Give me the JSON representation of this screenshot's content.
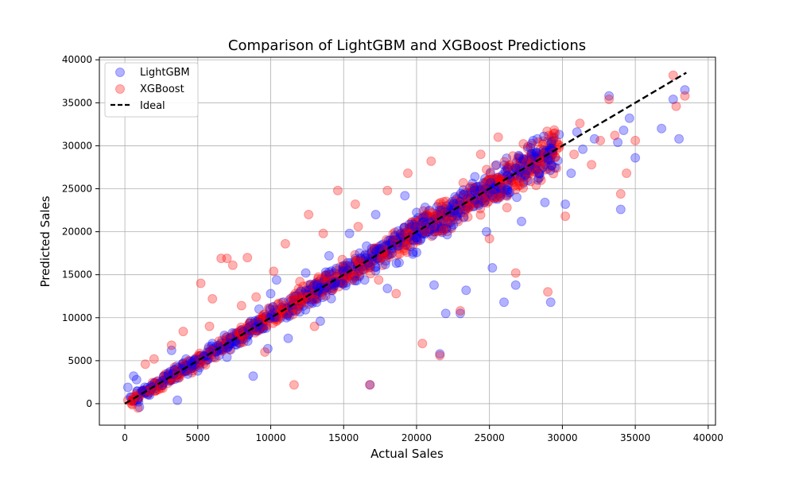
{
  "chart_data": {
    "type": "scatter",
    "title": "Comparison of LightGBM and XGBoost Predictions",
    "xlabel": "Actual Sales",
    "ylabel": "Predicted Sales",
    "xlim": [
      -1750,
      40500
    ],
    "ylim": [
      -2500,
      40300
    ],
    "xticks": [
      0,
      5000,
      10000,
      15000,
      20000,
      25000,
      30000,
      35000,
      40000
    ],
    "yticks": [
      0,
      5000,
      10000,
      15000,
      20000,
      25000,
      30000,
      35000,
      40000
    ],
    "grid": true,
    "legend_position": "top-left",
    "series": [
      {
        "name": "LightGBM",
        "color": "#0000ff",
        "marker": "circle",
        "opacity": 0.3,
        "points": [
          [
            200,
            1900
          ],
          [
            600,
            3200
          ],
          [
            800,
            2800
          ],
          [
            1000,
            -400
          ],
          [
            1700,
            1000
          ],
          [
            2200,
            2600
          ],
          [
            3200,
            6200
          ],
          [
            3600,
            400
          ],
          [
            4200,
            5200
          ],
          [
            5000,
            3800
          ],
          [
            6000,
            7000
          ],
          [
            7000,
            5400
          ],
          [
            8000,
            8600
          ],
          [
            8800,
            3200
          ],
          [
            9200,
            11000
          ],
          [
            9800,
            6400
          ],
          [
            10000,
            12800
          ],
          [
            10400,
            14400
          ],
          [
            11200,
            7600
          ],
          [
            12400,
            15200
          ],
          [
            13400,
            9600
          ],
          [
            14000,
            17200
          ],
          [
            15400,
            19800
          ],
          [
            16000,
            15400
          ],
          [
            16800,
            2200
          ],
          [
            17200,
            22000
          ],
          [
            18000,
            13400
          ],
          [
            18800,
            16400
          ],
          [
            19200,
            24200
          ],
          [
            20000,
            17600
          ],
          [
            20800,
            21800
          ],
          [
            21200,
            13800
          ],
          [
            21600,
            5800
          ],
          [
            22000,
            10500
          ],
          [
            22800,
            21400
          ],
          [
            23000,
            10500
          ],
          [
            23400,
            13200
          ],
          [
            24000,
            26400
          ],
          [
            24800,
            20000
          ],
          [
            25200,
            15800
          ],
          [
            26000,
            11800
          ],
          [
            26400,
            24600
          ],
          [
            26800,
            13800
          ],
          [
            27200,
            21200
          ],
          [
            28000,
            30600
          ],
          [
            28800,
            23400
          ],
          [
            29200,
            11800
          ],
          [
            30200,
            23200
          ],
          [
            30600,
            26800
          ],
          [
            31000,
            31600
          ],
          [
            31400,
            29600
          ],
          [
            32200,
            30800
          ],
          [
            33200,
            35800
          ],
          [
            33800,
            30400
          ],
          [
            34000,
            22600
          ],
          [
            34200,
            31800
          ],
          [
            34600,
            33200
          ],
          [
            35000,
            28600
          ],
          [
            36800,
            32000
          ],
          [
            37600,
            35400
          ],
          [
            38000,
            30800
          ],
          [
            38400,
            36500
          ]
        ]
      },
      {
        "name": "XGBoost",
        "color": "#ff0000",
        "marker": "circle",
        "opacity": 0.3,
        "points": [
          [
            200,
            400
          ],
          [
            900,
            -500
          ],
          [
            1400,
            4600
          ],
          [
            2000,
            5200
          ],
          [
            2600,
            1800
          ],
          [
            3200,
            6800
          ],
          [
            4000,
            8400
          ],
          [
            4600,
            3600
          ],
          [
            5200,
            14000
          ],
          [
            5800,
            9000
          ],
          [
            6000,
            12200
          ],
          [
            6600,
            16900
          ],
          [
            7000,
            16900
          ],
          [
            7400,
            16100
          ],
          [
            8000,
            11400
          ],
          [
            8400,
            17000
          ],
          [
            9000,
            12400
          ],
          [
            9600,
            6000
          ],
          [
            10200,
            15400
          ],
          [
            11000,
            18600
          ],
          [
            11600,
            2200
          ],
          [
            12000,
            14200
          ],
          [
            12600,
            22000
          ],
          [
            13000,
            9000
          ],
          [
            13600,
            19800
          ],
          [
            14600,
            24800
          ],
          [
            15000,
            15800
          ],
          [
            15800,
            23200
          ],
          [
            16000,
            20600
          ],
          [
            16800,
            2200
          ],
          [
            17400,
            14400
          ],
          [
            18000,
            24800
          ],
          [
            18600,
            12800
          ],
          [
            19400,
            26800
          ],
          [
            20000,
            21200
          ],
          [
            20400,
            7000
          ],
          [
            21000,
            28200
          ],
          [
            21600,
            5600
          ],
          [
            22400,
            20400
          ],
          [
            23000,
            10800
          ],
          [
            23800,
            24600
          ],
          [
            24400,
            29000
          ],
          [
            25000,
            19200
          ],
          [
            25600,
            31000
          ],
          [
            26200,
            22800
          ],
          [
            26800,
            15200
          ],
          [
            27400,
            28400
          ],
          [
            28200,
            25400
          ],
          [
            29000,
            13000
          ],
          [
            29600,
            27400
          ],
          [
            30200,
            21800
          ],
          [
            30800,
            29000
          ],
          [
            31200,
            32600
          ],
          [
            32000,
            27800
          ],
          [
            32600,
            30600
          ],
          [
            33200,
            35400
          ],
          [
            33600,
            31200
          ],
          [
            34000,
            24400
          ],
          [
            34400,
            26800
          ],
          [
            35000,
            30600
          ],
          [
            37600,
            38200
          ],
          [
            37800,
            34600
          ],
          [
            38400,
            35800
          ]
        ]
      },
      {
        "name": "Ideal",
        "color": "#000000",
        "style": "dashed",
        "x": [
          0,
          38500
        ],
        "y": [
          0,
          38500
        ]
      }
    ]
  }
}
